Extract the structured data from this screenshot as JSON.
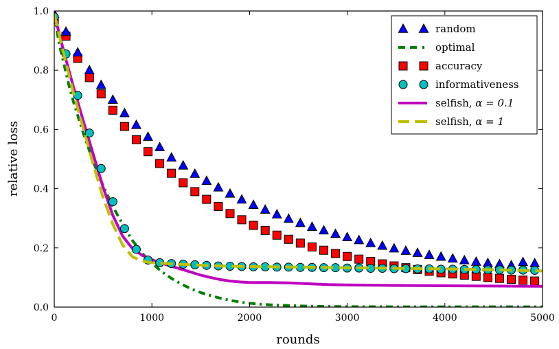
{
  "chart_data": {
    "type": "line",
    "title": "",
    "xlabel": "rounds",
    "ylabel": "relative loss",
    "xlim": [
      0,
      5000
    ],
    "ylim": [
      0.0,
      1.0
    ],
    "xticks": [
      "0",
      "1000",
      "2000",
      "3000",
      "4000",
      "5000"
    ],
    "yticks": [
      "0.0",
      "0.2",
      "0.4",
      "0.6",
      "0.8",
      "1.0"
    ],
    "grid": false,
    "legend_position": "top-right",
    "series": [
      {
        "name": "random",
        "style": "triangle-markers",
        "color": "#0000ff",
        "x": [
          0,
          120,
          240,
          360,
          480,
          600,
          720,
          840,
          960,
          1080,
          1200,
          1320,
          1440,
          1560,
          1680,
          1800,
          1920,
          2040,
          2160,
          2280,
          2400,
          2520,
          2640,
          2760,
          2880,
          3000,
          3120,
          3240,
          3360,
          3480,
          3600,
          3720,
          3840,
          3960,
          4080,
          4200,
          4320,
          4440,
          4560,
          4680,
          4800,
          4920
        ],
        "values": [
          0.99,
          0.93,
          0.86,
          0.8,
          0.75,
          0.7,
          0.655,
          0.615,
          0.575,
          0.54,
          0.505,
          0.478,
          0.45,
          0.426,
          0.404,
          0.383,
          0.363,
          0.345,
          0.329,
          0.313,
          0.298,
          0.284,
          0.271,
          0.259,
          0.247,
          0.236,
          0.226,
          0.216,
          0.207,
          0.198,
          0.19,
          0.183,
          0.176,
          0.17,
          0.164,
          0.158,
          0.153,
          0.149,
          0.145,
          0.141,
          0.152,
          0.148
        ]
      },
      {
        "name": "optimal",
        "style": "dash-dot-line",
        "color": "#008000",
        "x": [
          0,
          50,
          100,
          150,
          200,
          300,
          400,
          500,
          600,
          700,
          800,
          900,
          1000,
          1100,
          1200,
          1300,
          1400,
          1500,
          1600,
          1700,
          1800,
          1900,
          2000,
          2100,
          2200,
          2400,
          2600,
          2800,
          3000,
          3500,
          4000,
          4500,
          5000
        ],
        "values": [
          0.99,
          0.89,
          0.82,
          0.75,
          0.69,
          0.585,
          0.49,
          0.41,
          0.34,
          0.28,
          0.225,
          0.182,
          0.148,
          0.12,
          0.097,
          0.078,
          0.062,
          0.049,
          0.039,
          0.03,
          0.023,
          0.017,
          0.013,
          0.01,
          0.008,
          0.005,
          0.003,
          0.002,
          0.0015,
          0.001,
          0.001,
          0.001,
          0.001
        ]
      },
      {
        "name": "accuracy",
        "style": "square-markers",
        "color": "#ff0000",
        "x": [
          0,
          120,
          240,
          360,
          480,
          600,
          720,
          840,
          960,
          1080,
          1200,
          1320,
          1440,
          1560,
          1680,
          1800,
          1920,
          2040,
          2160,
          2280,
          2400,
          2520,
          2640,
          2760,
          2880,
          3000,
          3120,
          3240,
          3360,
          3480,
          3600,
          3720,
          3840,
          3960,
          4080,
          4200,
          4320,
          4440,
          4560,
          4680,
          4800,
          4920
        ],
        "values": [
          0.97,
          0.915,
          0.84,
          0.775,
          0.72,
          0.665,
          0.61,
          0.565,
          0.525,
          0.485,
          0.452,
          0.42,
          0.39,
          0.364,
          0.34,
          0.316,
          0.295,
          0.276,
          0.259,
          0.243,
          0.229,
          0.216,
          0.203,
          0.192,
          0.181,
          0.171,
          0.162,
          0.154,
          0.146,
          0.139,
          0.133,
          0.127,
          0.121,
          0.116,
          0.112,
          0.108,
          0.104,
          0.1,
          0.097,
          0.094,
          0.091,
          0.088
        ]
      },
      {
        "name": "informativeness",
        "style": "circle-markers",
        "color": "#00bfbf",
        "x": [
          0,
          120,
          240,
          360,
          480,
          600,
          720,
          840,
          960,
          1080,
          1200,
          1320,
          1440,
          1560,
          1680,
          1800,
          1920,
          2040,
          2160,
          2280,
          2400,
          2520,
          2640,
          2760,
          2880,
          3000,
          3120,
          3240,
          3360,
          3480,
          3600,
          3720,
          3840,
          3960,
          4080,
          4200,
          4320,
          4440,
          4560,
          4680,
          4800,
          4920
        ],
        "values": [
          0.98,
          0.855,
          0.715,
          0.588,
          0.468,
          0.356,
          0.265,
          0.195,
          0.159,
          0.15,
          0.147,
          0.145,
          0.143,
          0.141,
          0.139,
          0.138,
          0.137,
          0.136,
          0.136,
          0.135,
          0.135,
          0.134,
          0.134,
          0.133,
          0.133,
          0.132,
          0.132,
          0.131,
          0.131,
          0.13,
          0.13,
          0.129,
          0.129,
          0.128,
          0.128,
          0.127,
          0.127,
          0.126,
          0.126,
          0.125,
          0.125,
          0.124
        ]
      },
      {
        "name": "selfish, α = 0.1",
        "style": "solid-line",
        "color": "#bf00bf",
        "x": [
          0,
          100,
          200,
          300,
          400,
          500,
          600,
          700,
          800,
          900,
          1000,
          1100,
          1200,
          1300,
          1400,
          1500,
          1600,
          1700,
          1800,
          1900,
          2000,
          2200,
          2400,
          2600,
          2800,
          3000,
          3500,
          4000,
          4500,
          5000
        ],
        "values": [
          0.99,
          0.86,
          0.74,
          0.625,
          0.515,
          0.405,
          0.31,
          0.24,
          0.198,
          0.175,
          0.16,
          0.148,
          0.138,
          0.128,
          0.118,
          0.108,
          0.1,
          0.093,
          0.088,
          0.085,
          0.083,
          0.083,
          0.082,
          0.079,
          0.076,
          0.075,
          0.073,
          0.072,
          0.071,
          0.07
        ]
      },
      {
        "name": "selfish, α = 1",
        "style": "dashed-line",
        "color": "#bfbf00",
        "x": [
          0,
          100,
          200,
          300,
          400,
          500,
          600,
          700,
          800,
          900,
          1000,
          1100,
          1200,
          1400,
          1600,
          1800,
          2000,
          2500,
          3000,
          3500,
          4000,
          4500,
          5000
        ],
        "values": [
          0.99,
          0.85,
          0.72,
          0.6,
          0.48,
          0.37,
          0.28,
          0.21,
          0.17,
          0.155,
          0.15,
          0.148,
          0.146,
          0.143,
          0.14,
          0.138,
          0.137,
          0.135,
          0.133,
          0.131,
          0.129,
          0.126,
          0.122
        ]
      }
    ],
    "legend": {
      "entries": [
        {
          "label": "random"
        },
        {
          "label": "optimal"
        },
        {
          "label": "accuracy"
        },
        {
          "label": "informativeness"
        },
        {
          "label_prefix": "selfish, ",
          "label_math": "α = 0.1"
        },
        {
          "label_prefix": "selfish, ",
          "label_math": "α = 1"
        }
      ]
    }
  }
}
